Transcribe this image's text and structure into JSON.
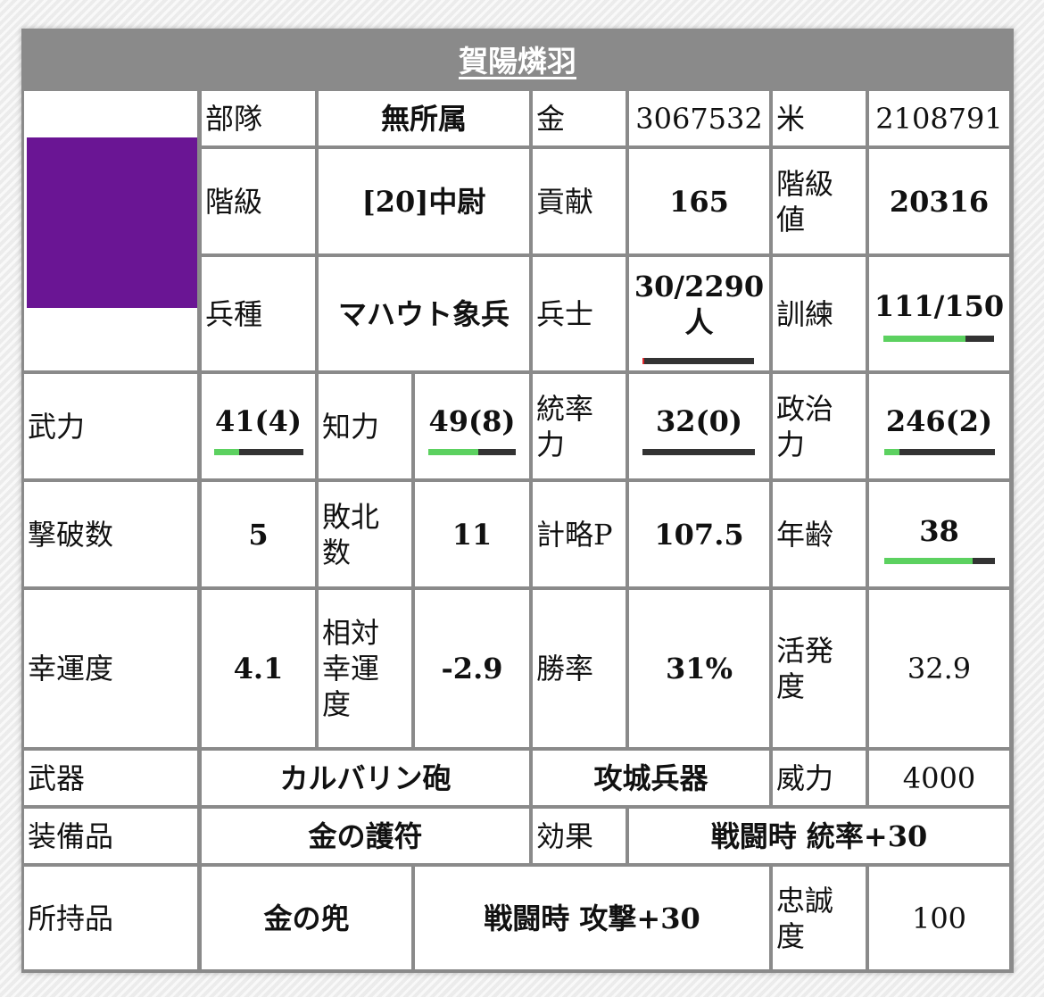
{
  "title": "賀陽燐羽",
  "row1": {
    "label1": "部隊",
    "value1": "無所属",
    "label2": "金",
    "value2": "3067532",
    "label3": "米",
    "value3": "2108791"
  },
  "row2": {
    "label1": "階級",
    "value1": "[20]中尉",
    "label2": "貢献",
    "value2": "165",
    "label3": "階級値",
    "value3": "20316"
  },
  "row3": {
    "label1": "兵種",
    "value1": "マハウト象兵",
    "label2": "兵士",
    "value2": "30/2290人",
    "soldier_fraction": 0.013,
    "label3": "訓練",
    "value3": "111/150",
    "training_fraction": 0.74
  },
  "row4": {
    "label1": "武力",
    "value1": "41(4)",
    "bar1": 0.28,
    "label2": "知力",
    "value2": "49(8)",
    "bar2": 0.57,
    "label3": "統率力",
    "value3": "32(0)",
    "bar3": 0.0,
    "label4": "政治力",
    "value4": "246(2)",
    "bar4": 0.14
  },
  "row5": {
    "label1": "撃破数",
    "value1": "5",
    "label2": "敗北数",
    "value2": "11",
    "label3": "計略P",
    "value3": "107.5",
    "label4": "年齢",
    "value4": "38",
    "age_fraction": 0.8
  },
  "row6": {
    "label1": "幸運度",
    "value1": "4.1",
    "label2": "相対幸運度",
    "value2": "-2.9",
    "label3": "勝率",
    "value3": "31%",
    "label4": "活発度",
    "value4": "32.9"
  },
  "row7": {
    "label1": "武器",
    "value1": "カルバリン砲",
    "value2": "攻城兵器",
    "label3": "威力",
    "value3": "4000"
  },
  "row8": {
    "label1": "装備品",
    "value1": "金の護符",
    "label2": "効果",
    "value2": "戦闘時 統率+30"
  },
  "row9": {
    "label1": "所持品",
    "value1": "金の兜",
    "value2": "戦闘時 攻撃+30",
    "label3": "忠誠度",
    "value3": "100"
  },
  "colors": {
    "header_bg": "#8a8a8a",
    "portrait": "#6a1594",
    "bar_fill": "#5cd160",
    "bar_track": "#333333",
    "soldier_fill": "#e0262a"
  }
}
